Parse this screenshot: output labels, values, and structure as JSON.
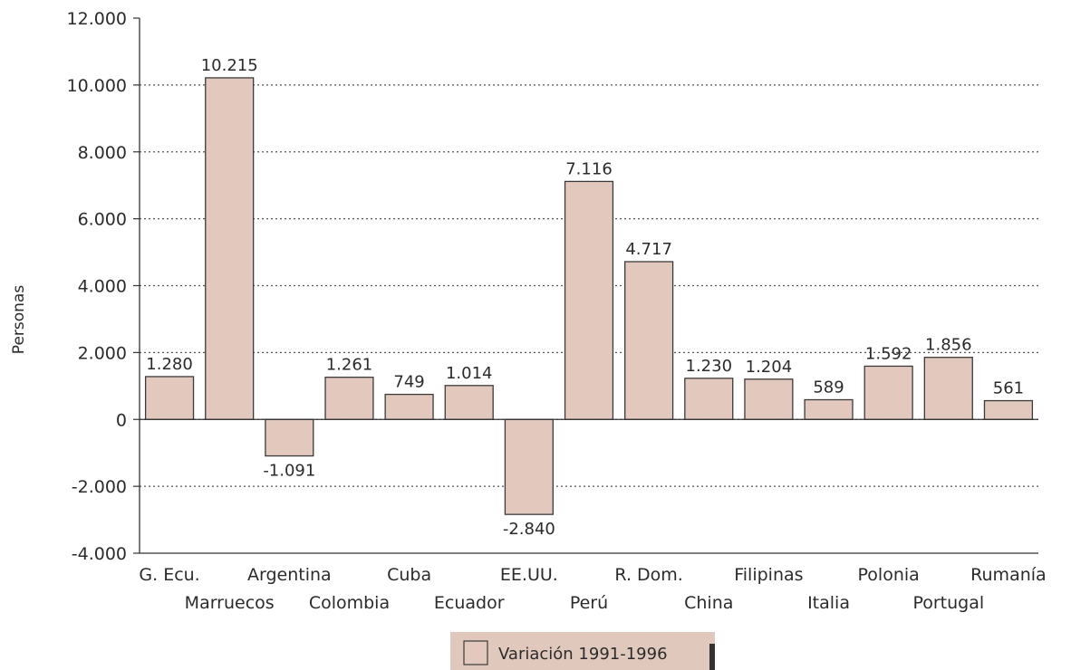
{
  "chart_data": {
    "type": "bar",
    "title": "",
    "xlabel": "",
    "ylabel": "Personas",
    "ylim": [
      -4000,
      12000
    ],
    "yticks": [
      -4000,
      -2000,
      0,
      2000,
      4000,
      6000,
      8000,
      10000,
      12000
    ],
    "ytick_labels": [
      "-4.000",
      "-2.000",
      "0",
      "2.000",
      "4.000",
      "6.000",
      "8.000",
      "10.000",
      "12.000"
    ],
    "grid": "horizontal dotted",
    "legend_position": "bottom-center",
    "categories": [
      "G. Ecu.",
      "Marruecos",
      "Argentina",
      "Colombia",
      "Cuba",
      "Ecuador",
      "EE.UU.",
      "Perú",
      "R. Dom.",
      "China",
      "Filipinas",
      "Italia",
      "Polonia",
      "Portugal",
      "Rumanía"
    ],
    "series": [
      {
        "name": "Variación 1991-1996",
        "values": [
          1280,
          10215,
          -1091,
          1261,
          749,
          1014,
          -2840,
          7116,
          4717,
          1230,
          1204,
          589,
          1592,
          1856,
          561
        ],
        "labels": [
          "1.280",
          "10.215",
          "-1.091",
          "1.261",
          "749",
          "1.014",
          "-2.840",
          "7.116",
          "4.717",
          "1.230",
          "1.204",
          "589",
          "1.592",
          "1.856",
          "561"
        ]
      }
    ],
    "colors": {
      "bar_fill": "#e3c9bd",
      "bar_stroke": "#3a3a3a",
      "legend_background": "#e0c8bc",
      "legend_swatch": "#e3c9bd",
      "grid": "#555555",
      "axis": "#333333"
    }
  }
}
